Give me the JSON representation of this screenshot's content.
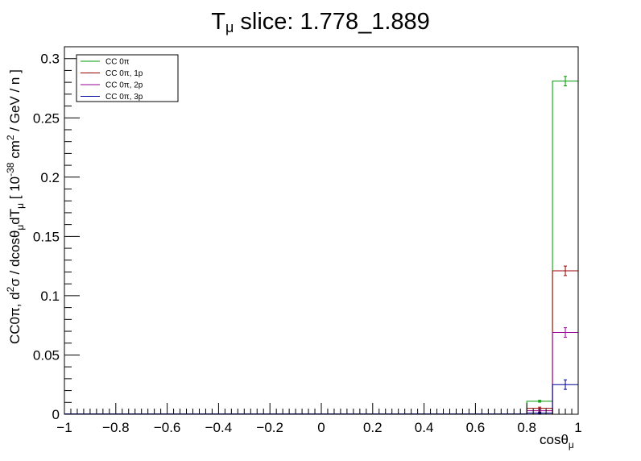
{
  "chart_data": {
    "type": "histogram",
    "title_main": "T",
    "title_sub": "μ",
    "title_rest": " slice: 1.778_1.889",
    "xlabel_main": "cosθ",
    "xlabel_sub": "μ",
    "ylabel_parts": {
      "p1": "CC0π, d",
      "p1_sup": "2",
      "p2": "σ / dcosθ",
      "p2_sub": "μ",
      "p3": "dT",
      "p3_sub": "μ",
      "p4": " [ 10",
      "p4_sup": "-38",
      "p5": " cm",
      "p5_sup": "2",
      "p6": " / GeV / n ]"
    },
    "xlim": [
      -1,
      1
    ],
    "ylim": [
      0,
      0.31
    ],
    "x_ticks": [
      "−1",
      "−0.8",
      "−0.6",
      "−0.4",
      "−0.2",
      "0",
      "0.2",
      "0.4",
      "0.6",
      "0.8",
      "1"
    ],
    "y_ticks": [
      "0",
      "0.05",
      "0.1",
      "0.15",
      "0.2",
      "0.25",
      "0.3"
    ],
    "bin_edges": [
      -1,
      -0.9,
      -0.8,
      -0.7,
      -0.6,
      -0.5,
      -0.4,
      -0.3,
      -0.2,
      -0.1,
      0,
      0.1,
      0.2,
      0.3,
      0.4,
      0.5,
      0.6,
      0.7,
      0.8,
      0.9,
      1.0
    ],
    "series": [
      {
        "name": "CC 0π",
        "color": "#009900",
        "values": [
          0,
          0,
          0,
          0,
          0,
          0,
          0,
          0,
          0,
          0,
          0,
          0,
          0,
          0,
          0,
          0,
          0,
          0,
          0.011,
          0.281
        ],
        "errors": [
          0,
          0,
          0,
          0,
          0,
          0,
          0,
          0,
          0,
          0,
          0,
          0,
          0,
          0,
          0,
          0,
          0,
          0,
          0.0008,
          0.004
        ]
      },
      {
        "name": "CC 0π, 1p",
        "color": "#990000",
        "values": [
          0,
          0,
          0,
          0,
          0,
          0,
          0,
          0,
          0,
          0,
          0,
          0,
          0,
          0,
          0,
          0,
          0,
          0,
          0.005,
          0.121
        ],
        "errors": [
          0,
          0,
          0,
          0,
          0,
          0,
          0,
          0,
          0,
          0,
          0,
          0,
          0,
          0,
          0,
          0,
          0,
          0,
          0.001,
          0.004
        ]
      },
      {
        "name": "CC 0π, 2p",
        "color": "#990099",
        "values": [
          0,
          0,
          0,
          0,
          0,
          0,
          0,
          0,
          0,
          0,
          0,
          0,
          0,
          0,
          0,
          0,
          0,
          0,
          0.003,
          0.069
        ],
        "errors": [
          0,
          0,
          0,
          0,
          0,
          0,
          0,
          0,
          0,
          0,
          0,
          0,
          0,
          0,
          0,
          0,
          0,
          0,
          0.001,
          0.004
        ]
      },
      {
        "name": "CC 0π, 3p",
        "color": "#000099",
        "values": [
          0,
          0,
          0,
          0,
          0,
          0,
          0,
          0,
          0,
          0,
          0,
          0,
          0,
          0,
          0,
          0,
          0,
          0,
          0.001,
          0.025
        ],
        "errors": [
          0,
          0,
          0,
          0,
          0,
          0,
          0,
          0,
          0,
          0,
          0,
          0,
          0,
          0,
          0,
          0,
          0,
          0,
          0.0005,
          0.004
        ]
      }
    ],
    "grid": false,
    "legend_position": "top-left"
  }
}
